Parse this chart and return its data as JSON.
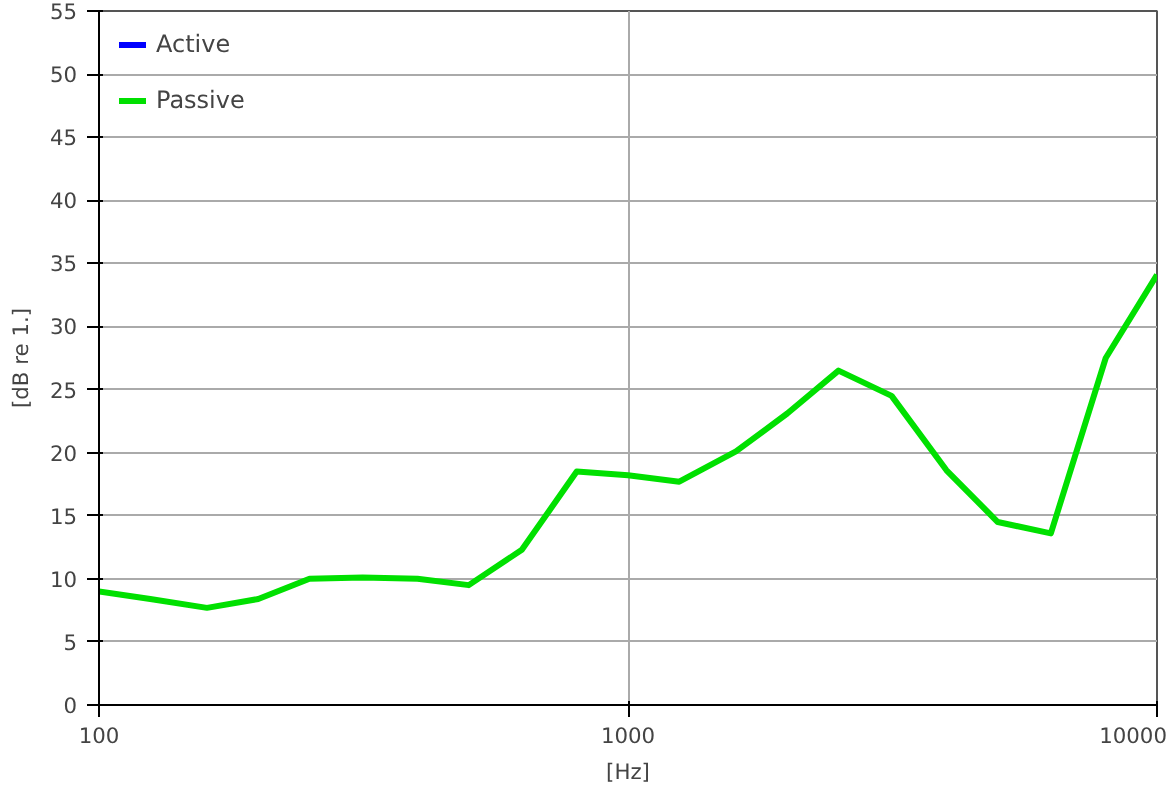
{
  "chart_data": {
    "type": "line",
    "xlabel": "[Hz]",
    "ylabel": "[dB re 1.]",
    "log": "x",
    "x": [
      100,
      125,
      160,
      200,
      250,
      315,
      400,
      500,
      630,
      800,
      1000,
      1250,
      1600,
      2000,
      2500,
      3150,
      4000,
      5000,
      6300,
      8000,
      10000
    ],
    "series": [
      {
        "name": "Active",
        "color": "#0000ff",
        "values": [
          null,
          null,
          null,
          null,
          null,
          null,
          null,
          null,
          null,
          null,
          null,
          null,
          null,
          null,
          null,
          null,
          null,
          null,
          null,
          null,
          null
        ]
      },
      {
        "name": "Passive",
        "color": "#00e000",
        "values": [
          9.0,
          8.4,
          7.7,
          8.4,
          10.0,
          10.1,
          10.0,
          9.5,
          12.3,
          18.5,
          18.2,
          17.7,
          20.1,
          23.1,
          26.5,
          24.5,
          18.6,
          14.5,
          13.6,
          27.5,
          34.1
        ]
      }
    ],
    "xlim": [
      100,
      10000
    ],
    "xticks": [
      100,
      1000,
      10000
    ],
    "ylim": [
      0,
      55
    ],
    "yticks": [
      0,
      5,
      10,
      15,
      20,
      25,
      30,
      35,
      40,
      45,
      50,
      55
    ],
    "grid": true,
    "legend": "top left",
    "marker": "none",
    "line_style": "solid"
  }
}
